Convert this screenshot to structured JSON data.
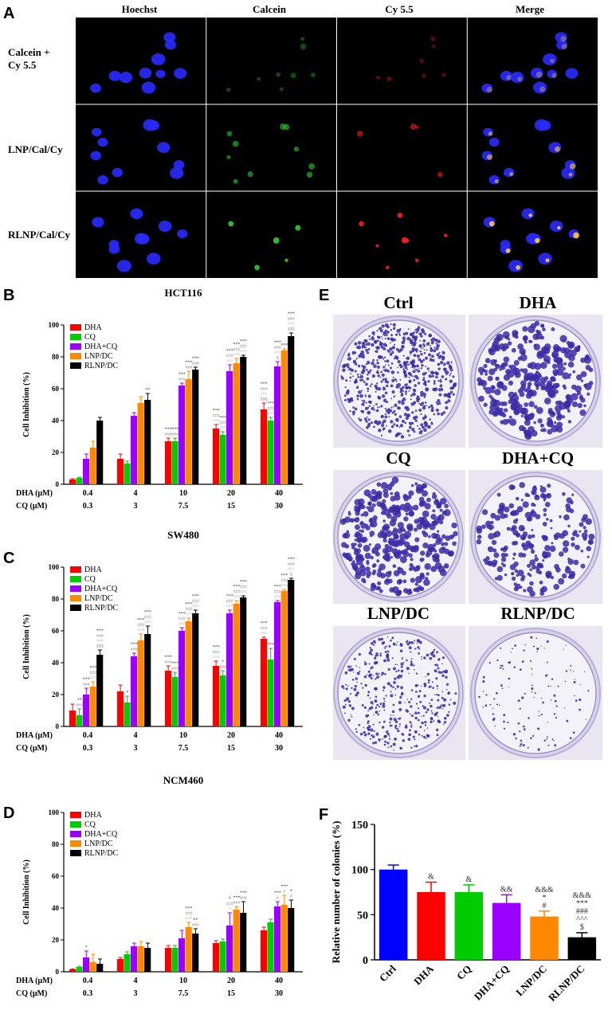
{
  "panel_a": {
    "letter": "A",
    "columns": [
      "Hoechst",
      "Calcein",
      "Cy 5.5",
      "Merge"
    ],
    "rows": [
      "Calcein +\nCy 5.5",
      "LNP/Cal/Cy",
      "RLNP/Cal/Cy"
    ],
    "channel_colors": [
      "#2222ff",
      "#33cc33",
      "#ee2222",
      "#ffcc33"
    ]
  },
  "panel_e": {
    "letter": "E",
    "plates": [
      "Ctrl",
      "DHA",
      "CQ",
      "DHA+CQ",
      "LNP/DC",
      "RLNP/DC"
    ]
  },
  "legend_labels": [
    "DHA",
    "CQ",
    "DHA+CQ",
    "LNP/DC",
    "RLNP/DC"
  ],
  "colors": {
    "DHA": "#ff0000",
    "CQ": "#00cc00",
    "DHA+CQ": "#9900ff",
    "LNP/DC": "#ff8800",
    "RLNP/DC": "#000000",
    "Ctrl": "#0000ff"
  },
  "chart_data": [
    {
      "type": "bar",
      "letter": "B",
      "title": "HCT116",
      "ylabel": "Cell Inhibition (%)",
      "ylim": [
        0,
        100
      ],
      "yticks": [
        0,
        20,
        40,
        60,
        80,
        100
      ],
      "x_row1_label": "DHA (μM)",
      "x_row2_label": "CQ (μM)",
      "categories_dha": [
        "0.4",
        "4",
        "10",
        "20",
        "40"
      ],
      "categories_cq": [
        "0.3",
        "3",
        "7.5",
        "15",
        "30"
      ],
      "series": [
        {
          "name": "DHA",
          "values": [
            3,
            16,
            27,
            35,
            47
          ],
          "errors": [
            0.5,
            3,
            2,
            2.5,
            4
          ]
        },
        {
          "name": "CQ",
          "values": [
            4,
            13,
            27,
            31,
            40
          ],
          "errors": [
            0.5,
            1.5,
            2,
            2,
            2
          ]
        },
        {
          "name": "DHA+CQ",
          "values": [
            16,
            43,
            62,
            71,
            74
          ],
          "errors": [
            3,
            2,
            1.5,
            4,
            3
          ]
        },
        {
          "name": "LNP/DC",
          "values": [
            23,
            51,
            66,
            76,
            84
          ],
          "errors": [
            4,
            4,
            5,
            3,
            1
          ]
        },
        {
          "name": "RLNP/DC",
          "values": [
            40,
            53,
            72,
            80,
            93
          ],
          "errors": [
            2,
            4,
            1.5,
            1,
            2
          ]
        }
      ],
      "annotations": [
        [
          [],
          [],
          [
            "***",
            "###"
          ],
          [
            "***",
            "###",
            "^^^"
          ],
          [
            "***",
            "###",
            "^^^",
            "$$$"
          ]
        ],
        [
          [],
          [],
          [
            "***",
            "###"
          ],
          [
            "***",
            "###",
            "^^^"
          ],
          [
            "***",
            "###",
            "^^^"
          ]
        ],
        [
          [],
          [],
          [
            "***",
            "###"
          ],
          [
            "***",
            "###",
            "^^^"
          ],
          [
            "***",
            "###",
            "^^^",
            "$"
          ]
        ],
        [
          [],
          [],
          [
            "***",
            "###"
          ],
          [
            "***",
            "###",
            "^^^"
          ],
          [
            "***"
          ]
        ],
        [
          [],
          [
            "**"
          ],
          [
            "***",
            "###"
          ],
          [
            "***",
            "###",
            "^^^"
          ],
          [
            "***",
            "###",
            "^^^",
            "$$$"
          ]
        ]
      ]
    },
    {
      "type": "bar",
      "letter": "C",
      "title": "SW480",
      "ylabel": "Cell Inhibition (%)",
      "ylim": [
        0,
        100
      ],
      "yticks": [
        0,
        20,
        40,
        60,
        80,
        100
      ],
      "x_row1_label": "DHA (μM)",
      "x_row2_label": "CQ (μM)",
      "categories_dha": [
        "0.4",
        "4",
        "10",
        "20",
        "40"
      ],
      "categories_cq": [
        "0.3",
        "3",
        "7.5",
        "15",
        "30"
      ],
      "series": [
        {
          "name": "DHA",
          "values": [
            10,
            22,
            35,
            38,
            55
          ],
          "errors": [
            4,
            4,
            3,
            3,
            1
          ]
        },
        {
          "name": "CQ",
          "values": [
            7,
            15,
            31,
            32,
            42
          ],
          "errors": [
            4,
            4,
            3,
            3,
            7
          ]
        },
        {
          "name": "DHA+CQ",
          "values": [
            20,
            44,
            60,
            71,
            78
          ],
          "errors": [
            4,
            2,
            2,
            2,
            1
          ]
        },
        {
          "name": "LNP/DC",
          "values": [
            25,
            54,
            66,
            77,
            85
          ],
          "errors": [
            3,
            4,
            2,
            2,
            1
          ]
        },
        {
          "name": "RLNP/DC",
          "values": [
            45,
            58,
            71,
            81,
            92
          ],
          "errors": [
            3,
            5,
            2,
            1,
            1
          ]
        }
      ],
      "annotations": [
        [
          [],
          [],
          [
            "***",
            "###"
          ],
          [
            "***",
            "###",
            "^^^"
          ],
          [
            "***",
            "###",
            "^^^"
          ]
        ],
        [
          [
            "**",
            "###"
          ],
          [
            "*"
          ],
          [
            "***",
            "###"
          ],
          [
            "*",
            "###"
          ],
          [
            "***"
          ]
        ],
        [
          [
            "***",
            "###"
          ],
          [
            "***",
            "###"
          ],
          [
            "***",
            "###",
            "^^^"
          ],
          [
            "***",
            "###",
            "^^^"
          ],
          [
            "***",
            "###",
            "^^^"
          ]
        ],
        [
          [
            "***",
            "###",
            "^^^"
          ],
          [
            "***",
            "###",
            "^^^"
          ],
          [
            "***",
            "###",
            "^^^"
          ],
          [
            "***",
            "###",
            "^^^"
          ],
          [
            "***",
            "###",
            "^^^"
          ]
        ],
        [
          [
            "***",
            "###",
            "^^^",
            "$$$"
          ],
          [
            "***",
            "###",
            "^^^"
          ],
          [
            "***",
            "###",
            "^^^"
          ],
          [
            "***",
            "###",
            "^^^"
          ],
          [
            "***",
            "###",
            "^^^",
            "$"
          ]
        ]
      ]
    },
    {
      "type": "bar",
      "letter": "D",
      "title": "NCM460",
      "ylabel": "Cell Inhibition (%)",
      "ylim": [
        0,
        100
      ],
      "yticks": [
        0,
        20,
        40,
        60,
        80,
        100
      ],
      "x_row1_label": "DHA (μM)",
      "x_row2_label": "CQ (μM)",
      "categories_dha": [
        "0.4",
        "4",
        "10",
        "20",
        "40"
      ],
      "categories_cq": [
        "0.3",
        "3",
        "7.5",
        "15",
        "30"
      ],
      "series": [
        {
          "name": "DHA",
          "values": [
            1.5,
            8,
            15,
            18,
            26
          ],
          "errors": [
            0.3,
            1,
            1.5,
            1.5,
            2
          ]
        },
        {
          "name": "CQ",
          "values": [
            3,
            11,
            15,
            19,
            31
          ],
          "errors": [
            0.5,
            1.5,
            1.5,
            1.5,
            2
          ]
        },
        {
          "name": "DHA+CQ",
          "values": [
            9,
            16,
            21,
            29,
            41
          ],
          "errors": [
            4,
            2,
            5,
            8,
            3
          ]
        },
        {
          "name": "LNP/DC",
          "values": [
            6,
            16,
            28,
            39,
            42
          ],
          "errors": [
            5,
            3,
            3,
            2,
            6
          ]
        },
        {
          "name": "RLNP/DC",
          "values": [
            5,
            15,
            24,
            37,
            40
          ],
          "errors": [
            3,
            3,
            3,
            7,
            5
          ]
        }
      ],
      "annotations": [
        [
          [],
          [],
          [],
          [],
          []
        ],
        [
          [],
          [],
          [],
          [],
          []
        ],
        [
          [
            "*"
          ],
          [],
          [],
          [
            "*",
            "###",
            "^"
          ],
          [
            "***",
            "#"
          ]
        ],
        [
          [],
          [],
          [
            "***",
            "###",
            "^^^"
          ],
          [
            "***",
            "###"
          ],
          [
            "***",
            "#"
          ]
        ],
        [
          [],
          [],
          [
            "**",
            "###"
          ],
          [
            "***",
            "###"
          ],
          [
            "*",
            "#"
          ]
        ]
      ]
    },
    {
      "type": "bar",
      "letter": "F",
      "title": "",
      "ylabel": "Relative number of colonies (%)",
      "ylim": [
        0,
        150
      ],
      "yticks": [
        0,
        50,
        100,
        150
      ],
      "categories": [
        "Ctrl",
        "DHA",
        "CQ",
        "DHA+CQ",
        "LNP/DC",
        "RLNP/DC"
      ],
      "values": [
        100,
        75,
        75,
        63,
        48,
        25
      ],
      "errors": [
        5,
        11,
        8,
        9,
        6,
        5
      ],
      "bar_colors": [
        "#0000ff",
        "#ff0000",
        "#00cc00",
        "#9900ff",
        "#ff8800",
        "#000000"
      ],
      "annotations": [
        [],
        [
          "&"
        ],
        [
          "&"
        ],
        [
          "&&"
        ],
        [
          "&&&",
          "*",
          "#"
        ],
        [
          "&&&",
          "***",
          "###",
          "^^^",
          "$"
        ]
      ]
    }
  ]
}
